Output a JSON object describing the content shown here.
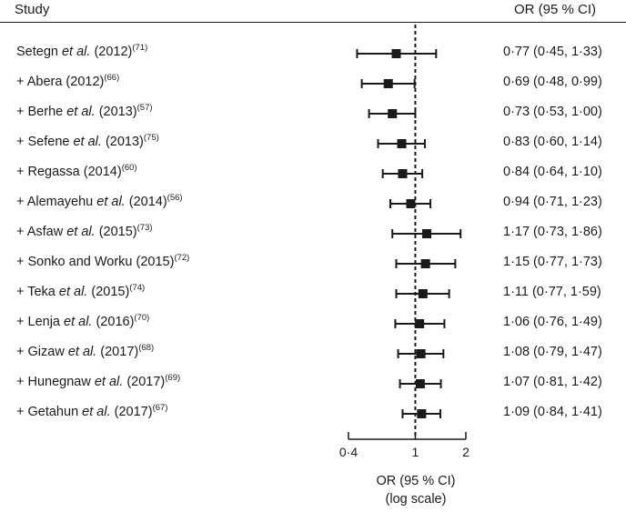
{
  "header": {
    "study": "Study",
    "or": "OR (95 % CI)"
  },
  "chart_data": {
    "type": "forest",
    "scale": "log",
    "xlim": [
      0.4,
      2
    ],
    "xticks": [
      0.4,
      1,
      2
    ],
    "xtick_labels": [
      "0·4",
      "1",
      "2"
    ],
    "reference_line": 1,
    "xlabel": "OR (95 % CI)",
    "xlabel_sub": "(log scale)",
    "rows": [
      {
        "prefix": "",
        "name": "Setegn",
        "etal": " et al.",
        "year": " (2012)",
        "ref": "(71)",
        "or": 0.77,
        "lo": 0.45,
        "hi": 1.33,
        "ci_text": "0·77 (0·45, 1·33)"
      },
      {
        "prefix": "+ ",
        "name": "Abera",
        "etal": "",
        "year": " (2012)",
        "ref": "(66)",
        "or": 0.69,
        "lo": 0.48,
        "hi": 0.99,
        "ci_text": "0·69 (0·48, 0·99)"
      },
      {
        "prefix": "+ ",
        "name": "Berhe",
        "etal": " et al.",
        "year": " (2013)",
        "ref": "(57)",
        "or": 0.73,
        "lo": 0.53,
        "hi": 1.0,
        "ci_text": "0·73 (0·53, 1·00)"
      },
      {
        "prefix": "+ ",
        "name": "Sefene",
        "etal": " et al.",
        "year": " (2013)",
        "ref": "(75)",
        "or": 0.83,
        "lo": 0.6,
        "hi": 1.14,
        "ci_text": "0·83 (0·60, 1·14)"
      },
      {
        "prefix": "+ ",
        "name": "Regassa",
        "etal": "",
        "year": " (2014)",
        "ref": "(60)",
        "or": 0.84,
        "lo": 0.64,
        "hi": 1.1,
        "ci_text": "0·84 (0·64, 1·10)"
      },
      {
        "prefix": "+ ",
        "name": "Alemayehu",
        "etal": " et al.",
        "year": " (2014)",
        "ref": "(56)",
        "or": 0.94,
        "lo": 0.71,
        "hi": 1.23,
        "ci_text": "0·94 (0·71, 1·23)"
      },
      {
        "prefix": "+ ",
        "name": "Asfaw",
        "etal": " et al.",
        "year": " (2015)",
        "ref": "(73)",
        "or": 1.17,
        "lo": 0.73,
        "hi": 1.86,
        "ci_text": "1·17 (0·73, 1·86)"
      },
      {
        "prefix": "+ ",
        "name": "Sonko and Worku",
        "etal": "",
        "year": " (2015)",
        "ref": "(72)",
        "or": 1.15,
        "lo": 0.77,
        "hi": 1.73,
        "ci_text": "1·15 (0·77, 1·73)"
      },
      {
        "prefix": "+ ",
        "name": "Teka",
        "etal": " et al.",
        "year": " (2015)",
        "ref": "(74)",
        "or": 1.11,
        "lo": 0.77,
        "hi": 1.59,
        "ci_text": "1·11 (0·77, 1·59)"
      },
      {
        "prefix": "+ ",
        "name": "Lenja",
        "etal": " et al.",
        "year": " (2016)",
        "ref": "(70)",
        "or": 1.06,
        "lo": 0.76,
        "hi": 1.49,
        "ci_text": "1·06 (0·76, 1·49)"
      },
      {
        "prefix": "+ ",
        "name": "Gizaw",
        "etal": " et al.",
        "year": " (2017)",
        "ref": "(68)",
        "or": 1.08,
        "lo": 0.79,
        "hi": 1.47,
        "ci_text": "1·08 (0·79, 1·47)"
      },
      {
        "prefix": "+ ",
        "name": "Hunegnaw",
        "etal": " et al.",
        "year": " (2017)",
        "ref": "(69)",
        "or": 1.07,
        "lo": 0.81,
        "hi": 1.42,
        "ci_text": "1·07 (0·81, 1·42)"
      },
      {
        "prefix": "+ ",
        "name": "Getahun",
        "etal": " et al.",
        "year": " (2017)",
        "ref": "(67)",
        "or": 1.09,
        "lo": 0.84,
        "hi": 1.41,
        "ci_text": "1·09 (0·84, 1·41)"
      }
    ]
  }
}
